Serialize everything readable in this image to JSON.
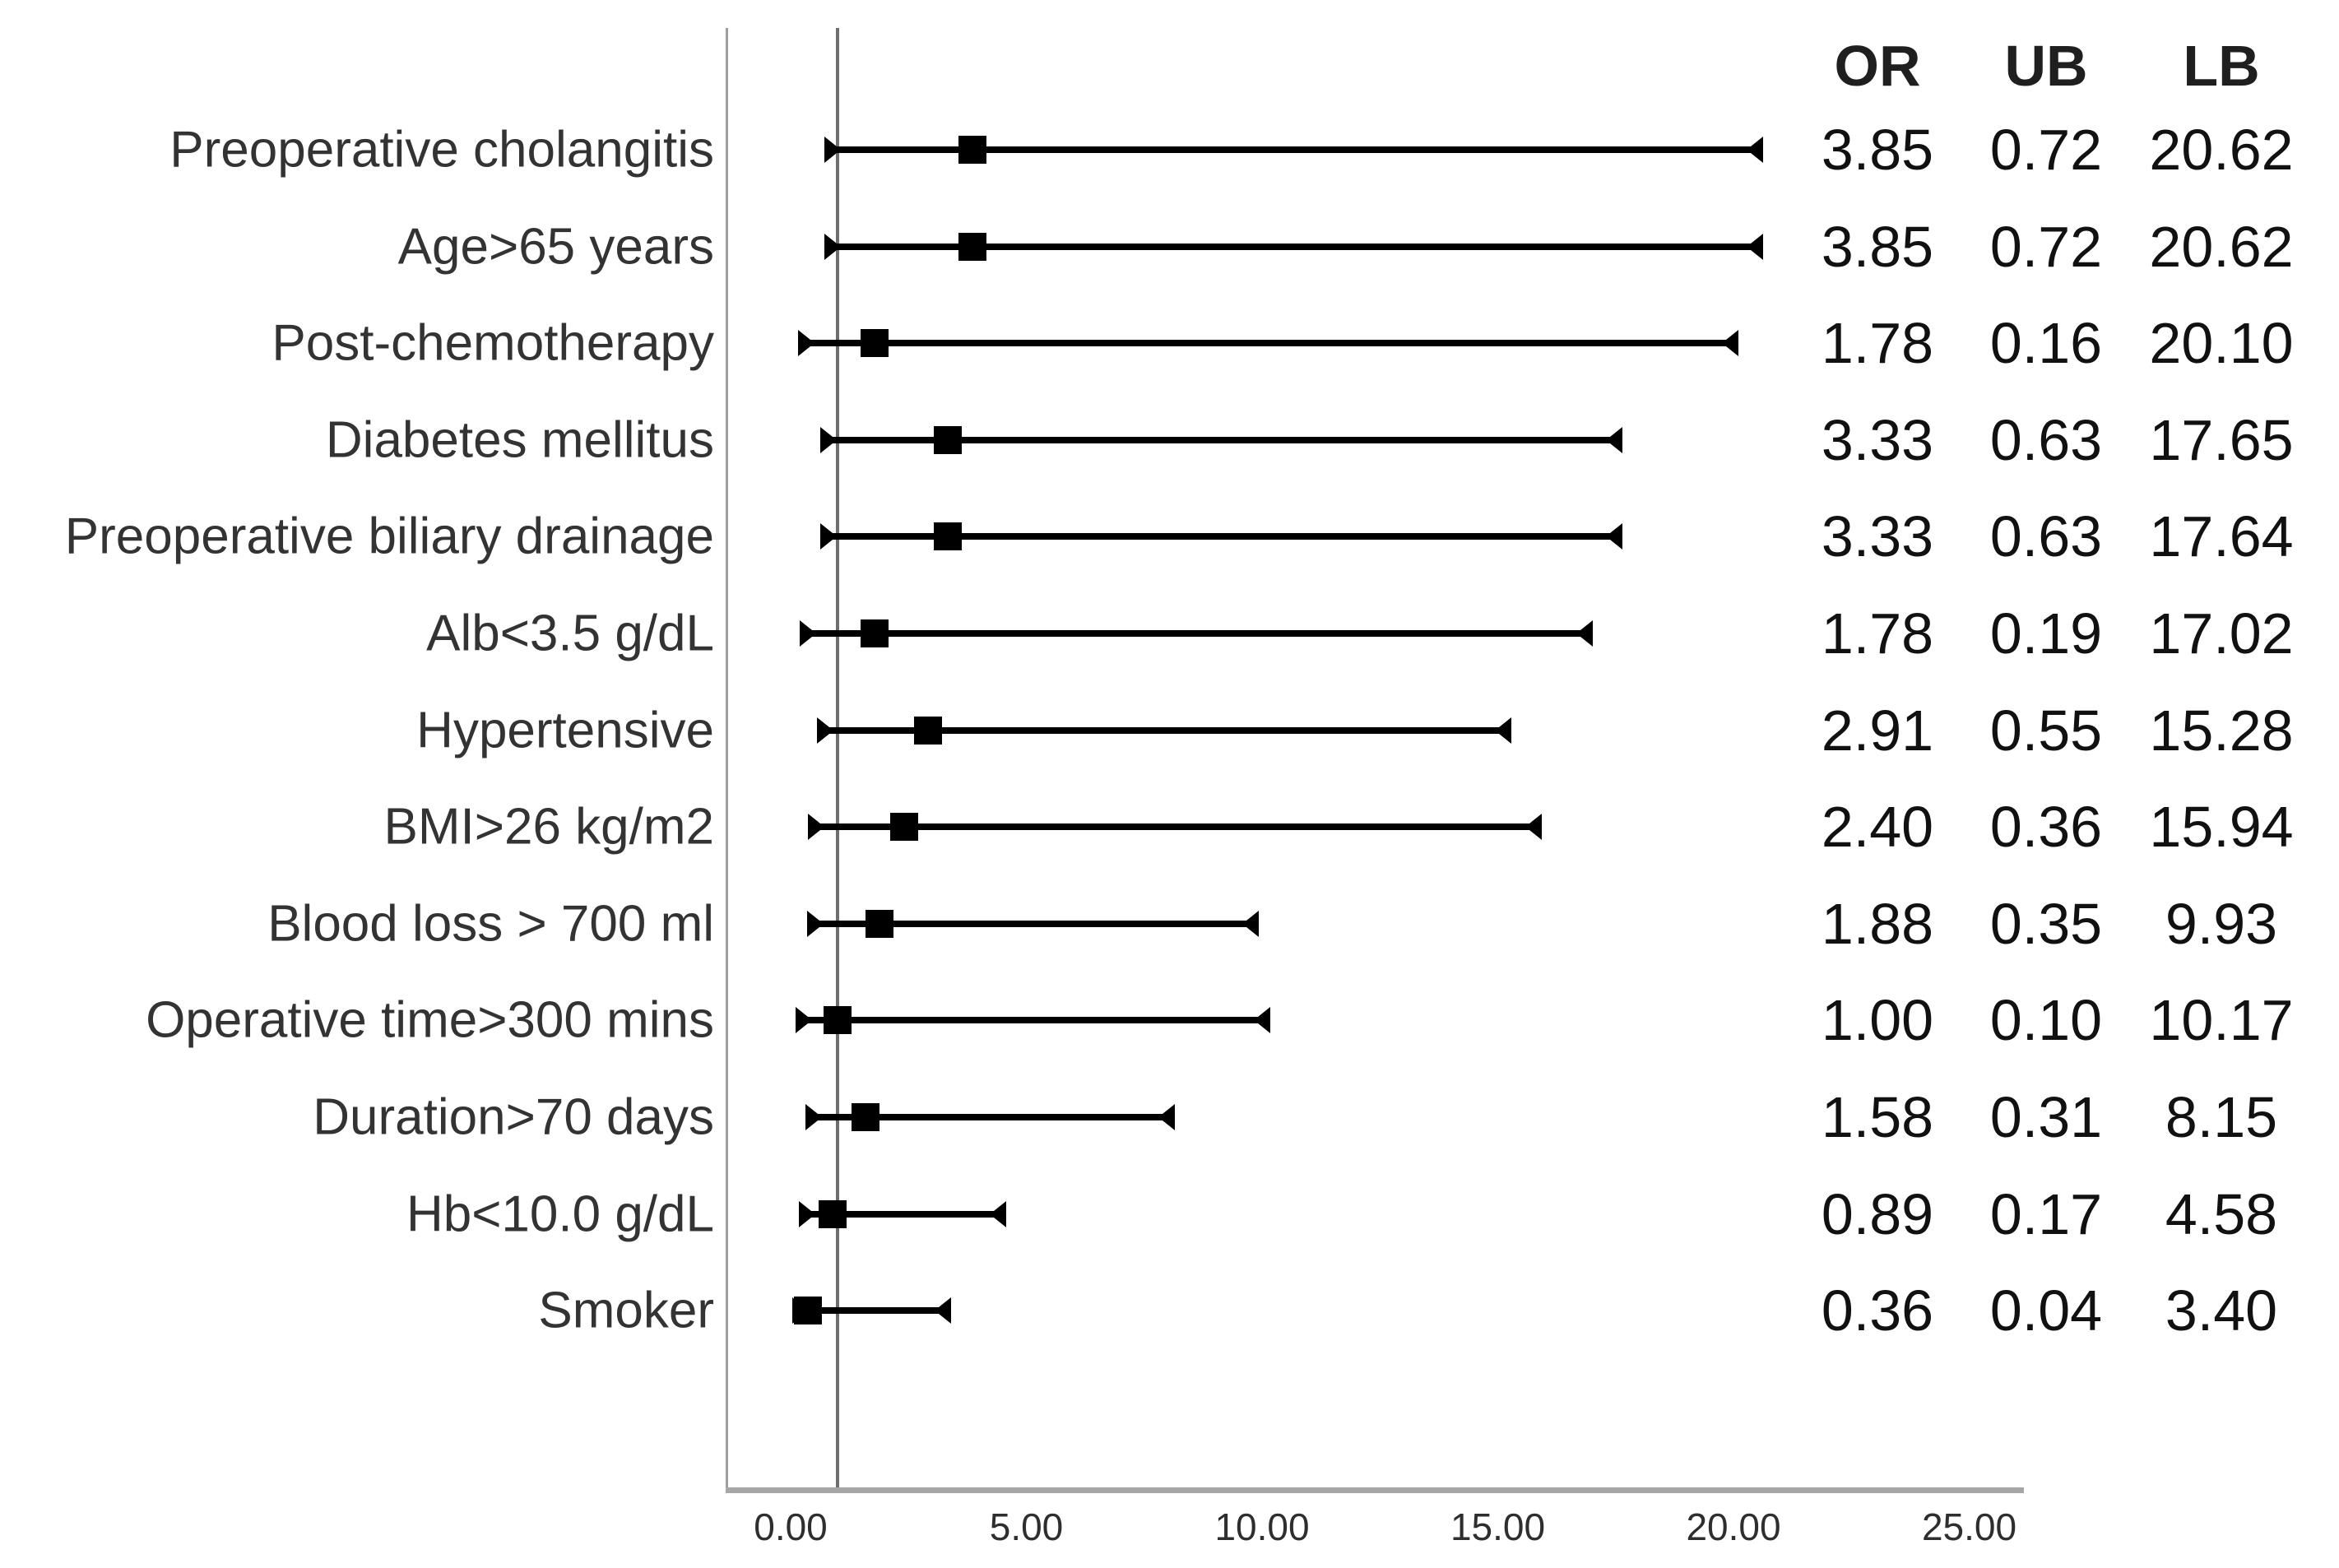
{
  "chart_data": {
    "type": "scatter",
    "variant": "forest-plot",
    "title": "",
    "xlabel": "",
    "ylabel": "",
    "columns": [
      "OR",
      "UB",
      "LB"
    ],
    "categories": [
      "Preoperative cholangitis",
      "Age>65 years",
      "Post-chemotherapy",
      "Diabetes mellitus",
      "Preoperative biliary drainage",
      "Alb<3.5 g/dL",
      "Hypertensive",
      "BMI>26 kg/m2",
      "Blood loss > 700 ml",
      "Operative time>300 mins",
      "Duration>70 days",
      "Hb<10.0 g/dL",
      "Smoker"
    ],
    "series": [
      {
        "name": "OR",
        "values": [
          3.85,
          3.85,
          1.78,
          3.33,
          3.33,
          1.78,
          2.91,
          2.4,
          1.88,
          1.0,
          1.58,
          0.89,
          0.36
        ]
      },
      {
        "name": "UB",
        "values": [
          0.72,
          0.72,
          0.16,
          0.63,
          0.63,
          0.19,
          0.55,
          0.36,
          0.35,
          0.1,
          0.31,
          0.17,
          0.04
        ]
      },
      {
        "name": "LB",
        "values": [
          20.62,
          20.62,
          20.1,
          17.65,
          17.64,
          17.02,
          15.28,
          15.94,
          9.93,
          10.17,
          8.15,
          4.58,
          3.4
        ]
      }
    ],
    "x_axis": {
      "tick_labels": [
        "0.00",
        "5.00",
        "10.00",
        "15.00",
        "20.00",
        "25.00"
      ],
      "tick_values": [
        0,
        5,
        10,
        15,
        20,
        25
      ],
      "range": [
        -1.4,
        26.2
      ],
      "grid": false
    },
    "reference_line_x": 1.0,
    "legend_position": "none",
    "marker_shape": "square",
    "error_bar_caps": "inward-triangles"
  },
  "colors": {
    "bar": "#000000",
    "marker": "#000000",
    "axis": "#a6a6a6",
    "reference_line": "#6e6e6e",
    "plot_border": "#9e9e9e",
    "text": "#1f1f1f"
  }
}
